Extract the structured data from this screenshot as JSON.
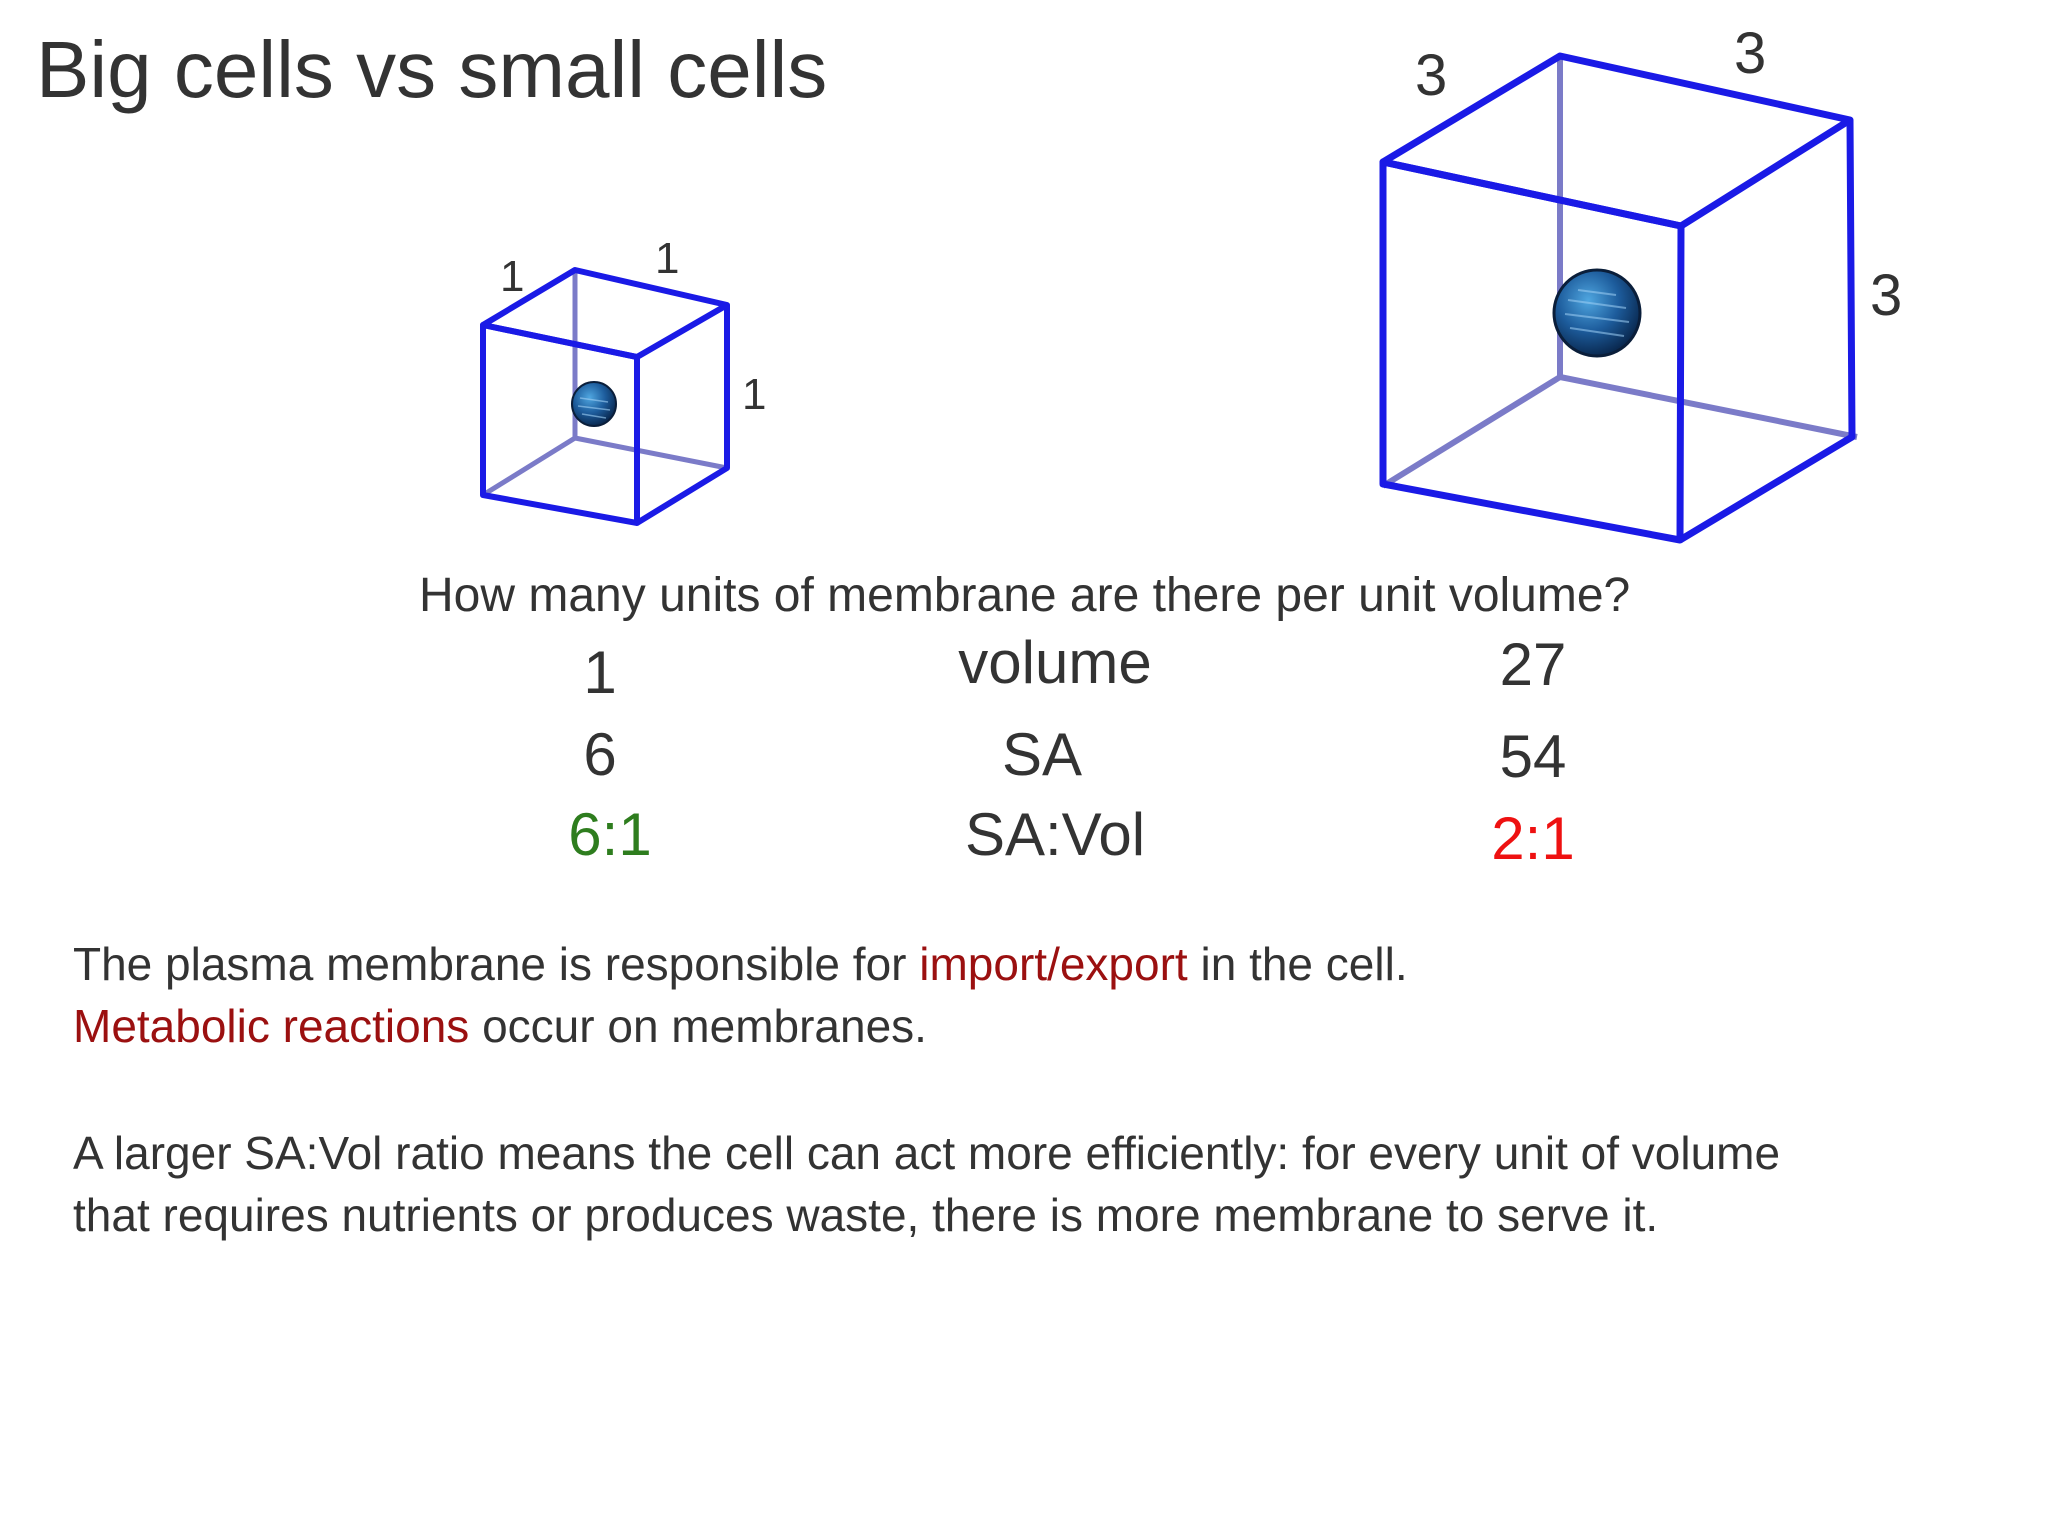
{
  "title": "Big cells vs small cells",
  "small_cube": {
    "edge_top_left": "1",
    "edge_top_right": "1",
    "edge_side": "1"
  },
  "large_cube": {
    "edge_top_left": "3",
    "edge_top_right": "3",
    "edge_side": "3"
  },
  "question": "How many units of membrane are there per unit volume?",
  "table": {
    "volume": {
      "small": "1",
      "label": "volume",
      "large": "27"
    },
    "sa": {
      "small": "6",
      "label": "SA",
      "large": "54"
    },
    "ratio": {
      "small": "6:1",
      "label": "SA:Vol",
      "large": "2:1"
    }
  },
  "paragraph1": {
    "line1_a": "The plasma membrane is responsible for ",
    "line1_b": "import/export",
    "line1_c": " in the cell.",
    "line2_a": "Metabolic reactions",
    "line2_b": " occur on membranes."
  },
  "paragraph2": {
    "line1": "A larger SA:Vol ratio means the cell can act more efficiently: for every unit of volume",
    "line2": "that requires nutrients or produces waste, there is more membrane to serve it."
  },
  "colors": {
    "cube_edge": "#1a1ae6",
    "hidden_edge": "#7b7bc8",
    "good_ratio": "#2e7d1e",
    "bad_ratio": "#ee1111",
    "highlight": "#9b1010"
  }
}
